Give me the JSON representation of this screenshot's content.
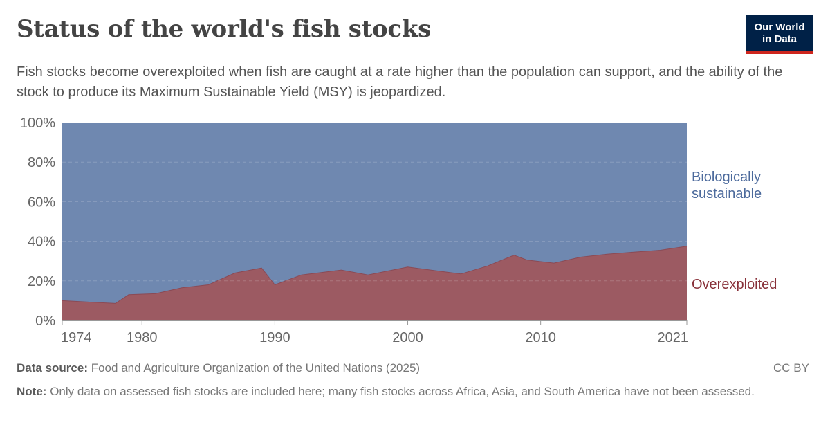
{
  "header": {
    "title": "Status of the world's fish stocks",
    "subtitle": "Fish stocks become overexploited when fish are caught at a rate higher than the population can support, and the ability of the stock to produce its Maximum Sustainable Yield (MSY) is jeopardized.",
    "logo_line1": "Our World",
    "logo_line2": "in Data"
  },
  "footer": {
    "source_label": "Data source:",
    "source_text": "Food and Agriculture Organization of the United Nations (2025)",
    "license": "CC BY",
    "note_label": "Note:",
    "note_text": "Only data on assessed fish stocks are included here; many fish stocks across Africa, Asia, and South America have not been assessed."
  },
  "colors": {
    "sustainable": "#6f88b0",
    "sustainable_label": "#4c6a9c",
    "overexploited": "#9c5a62",
    "overexploited_label": "#883039"
  },
  "chart_data": {
    "type": "area",
    "stacked": true,
    "x": [
      1974,
      1978,
      1979,
      1981,
      1983,
      1985,
      1987,
      1989,
      1990,
      1992,
      1995,
      1997,
      2000,
      2004,
      2006,
      2008,
      2009,
      2011,
      2013,
      2015,
      2017,
      2019,
      2021
    ],
    "series": [
      {
        "name": "Overexploited",
        "values": [
          10,
          8.6,
          13,
          13.5,
          16.5,
          18,
          24,
          26.5,
          18,
          23,
          25.5,
          23,
          27,
          23.5,
          27.5,
          33,
          30.5,
          29,
          32,
          33.5,
          34.5,
          35.5,
          37.5
        ]
      },
      {
        "name": "Biologically sustainable",
        "values": [
          90,
          91.4,
          87,
          86.5,
          83.5,
          82,
          76,
          73.5,
          82,
          77,
          74.5,
          77,
          73,
          76.5,
          72.5,
          67,
          69.5,
          71,
          68,
          66.5,
          65.5,
          64.5,
          62.5
        ]
      }
    ],
    "y_ticks": [
      "0%",
      "20%",
      "40%",
      "60%",
      "80%",
      "100%"
    ],
    "x_ticks": [
      "1974",
      "1980",
      "1990",
      "2000",
      "2010",
      "2021"
    ],
    "x_tick_values": [
      1974,
      1980,
      1990,
      2000,
      2010,
      2021
    ],
    "ylim": [
      0,
      100
    ],
    "xlim": [
      1974,
      2021
    ],
    "grid": true,
    "legend": "right-inline",
    "labels": {
      "sustainable_line1": "Biologically",
      "sustainable_line2": "sustainable",
      "overexploited": "Overexploited"
    }
  }
}
